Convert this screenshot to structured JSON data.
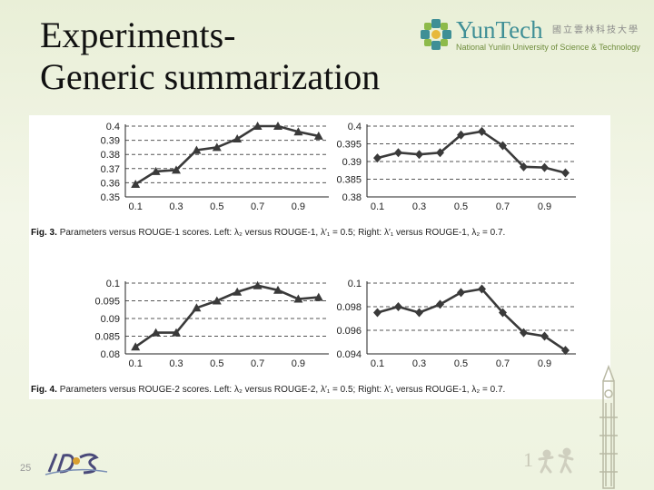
{
  "slide": {
    "title_line1": "Experiments-",
    "title_line2": "Generic summarization",
    "page_number": "25"
  },
  "logo": {
    "name": "YunTech",
    "chinese": "國立雲林科技大學",
    "english": "National Yunlin University of Science & Technology"
  },
  "captions": {
    "fig3_label": "Fig. 3.",
    "fig3_text": "Parameters versus ROUGE-1 scores. Left: λ₂ versus ROUGE-1, λ′₁ = 0.5; Right: λ′₁ versus ROUGE-1, λ₂ = 0.7.",
    "fig4_label": "Fig. 4.",
    "fig4_text": "Parameters versus ROUGE-2 scores. Left: λ₂ versus ROUGE-2, λ′₁ = 0.5; Right: λ′₁ versus ROUGE-1, λ₂ = 0.7."
  },
  "colors": {
    "line": "#3a3a3a",
    "grid": "#555555",
    "accent": "#3f8f96"
  },
  "chart_data": [
    {
      "type": "line",
      "marker": "triangle",
      "x": [
        0.1,
        0.2,
        0.3,
        0.4,
        0.5,
        0.6,
        0.7,
        0.8,
        0.9,
        1.0
      ],
      "y": [
        0.359,
        0.368,
        0.369,
        0.383,
        0.385,
        0.391,
        0.4,
        0.4,
        0.396,
        0.393
      ],
      "xticks": [
        "0.1",
        "0.3",
        "0.5",
        "0.7",
        "0.9"
      ],
      "xtick_values": [
        0.1,
        0.3,
        0.5,
        0.7,
        0.9
      ],
      "yticks": [
        "0.35",
        "0.36",
        "0.37",
        "0.38",
        "0.39",
        "0.4"
      ],
      "ytick_values": [
        0.35,
        0.36,
        0.37,
        0.38,
        0.39,
        0.4
      ],
      "xlim": [
        0.05,
        1.05
      ],
      "ylim": [
        0.35,
        0.4
      ],
      "grid": "horizontal dashed"
    },
    {
      "type": "line",
      "marker": "diamond",
      "x": [
        0.1,
        0.2,
        0.3,
        0.4,
        0.5,
        0.6,
        0.7,
        0.8,
        0.9,
        1.0
      ],
      "y": [
        0.391,
        0.3925,
        0.392,
        0.3925,
        0.3975,
        0.3985,
        0.3945,
        0.3885,
        0.3883,
        0.3868
      ],
      "xticks": [
        "0.1",
        "0.3",
        "0.5",
        "0.7",
        "0.9"
      ],
      "xtick_values": [
        0.1,
        0.3,
        0.5,
        0.7,
        0.9
      ],
      "yticks": [
        "0.38",
        "0.385",
        "0.39",
        "0.395",
        "0.4"
      ],
      "ytick_values": [
        0.38,
        0.385,
        0.39,
        0.395,
        0.4
      ],
      "xlim": [
        0.05,
        1.05
      ],
      "ylim": [
        0.38,
        0.4
      ],
      "grid": "horizontal dashed"
    },
    {
      "type": "line",
      "marker": "triangle",
      "x": [
        0.1,
        0.2,
        0.3,
        0.4,
        0.5,
        0.6,
        0.7,
        0.8,
        0.9,
        1.0
      ],
      "y": [
        0.082,
        0.086,
        0.086,
        0.093,
        0.095,
        0.0975,
        0.0993,
        0.098,
        0.0955,
        0.096
      ],
      "xticks": [
        "0.1",
        "0.3",
        "0.5",
        "0.7",
        "0.9"
      ],
      "xtick_values": [
        0.1,
        0.3,
        0.5,
        0.7,
        0.9
      ],
      "yticks": [
        "0.08",
        "0.085",
        "0.09",
        "0.095",
        "0.1"
      ],
      "ytick_values": [
        0.08,
        0.085,
        0.09,
        0.095,
        0.1
      ],
      "xlim": [
        0.05,
        1.05
      ],
      "ylim": [
        0.08,
        0.1
      ],
      "grid": "horizontal dashed"
    },
    {
      "type": "line",
      "marker": "diamond",
      "x": [
        0.1,
        0.2,
        0.3,
        0.4,
        0.5,
        0.6,
        0.7,
        0.8,
        0.9,
        1.0
      ],
      "y": [
        0.0975,
        0.098,
        0.0975,
        0.0982,
        0.0992,
        0.0995,
        0.0975,
        0.0958,
        0.0955,
        0.0943
      ],
      "xticks": [
        "0.1",
        "0.3",
        "0.5",
        "0.7",
        "0.9"
      ],
      "xtick_values": [
        0.1,
        0.3,
        0.5,
        0.7,
        0.9
      ],
      "yticks": [
        "0.094",
        "0.096",
        "0.098",
        "0.1"
      ],
      "ytick_values": [
        0.094,
        0.096,
        0.098,
        0.1
      ],
      "xlim": [
        0.05,
        1.05
      ],
      "ylim": [
        0.094,
        0.1
      ],
      "grid": "horizontal dashed"
    }
  ]
}
